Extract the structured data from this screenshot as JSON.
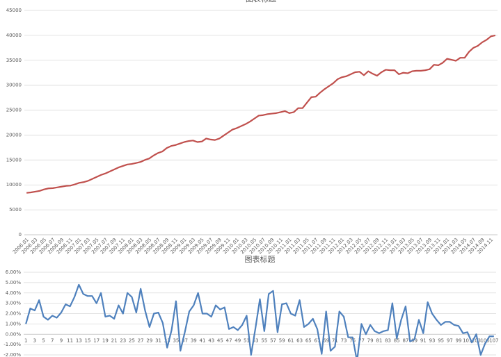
{
  "chart_data": [
    {
      "type": "line",
      "title": "图表标题",
      "categories": [
        "2006.01",
        null,
        "2006.03",
        null,
        "2006.05",
        null,
        "2006.07",
        null,
        "2006.09",
        null,
        "2006.11",
        null,
        "2007.01",
        null,
        "2007.03",
        null,
        "2007.05",
        null,
        "2007.07",
        null,
        "2007.09",
        null,
        "2007.11",
        null,
        "2008.01",
        null,
        "2008.03",
        null,
        "2008.05",
        null,
        "2008.07",
        null,
        "2008.09",
        null,
        "2008.11",
        null,
        "2009.01",
        null,
        "2009.03",
        null,
        "2009.05",
        null,
        "2009.07",
        null,
        "2009.09",
        null,
        "2009.11",
        null,
        "2010.01",
        null,
        "2010.03",
        null,
        "2010.05",
        null,
        "2010.07",
        null,
        "2010.09",
        null,
        "2010.11",
        null,
        "2011.01",
        null,
        "2011.03",
        null,
        "2011.05",
        null,
        "2011.07",
        null,
        "2011.09",
        null,
        "2011.11",
        null,
        "2012.01",
        null,
        "2012.03",
        null,
        "2012.05",
        null,
        "2012.07",
        null,
        "2012.09",
        null,
        "2012.11",
        null,
        "2013.01",
        null,
        "2013.03",
        null,
        "2013.05",
        null,
        "2013.07",
        null,
        "2013.09",
        null,
        "2013.11",
        null,
        "2014.01",
        null,
        "2014.03",
        null,
        "2014.05",
        null,
        "2014.07",
        null,
        "2014.09",
        null,
        "2014.11",
        null
      ],
      "series": [
        {
          "color": "#c0504d",
          "values": [
            8400,
            8500,
            8650,
            8800,
            9100,
            9300,
            9350,
            9500,
            9650,
            9800,
            9850,
            10100,
            10400,
            10550,
            10800,
            11200,
            11600,
            12000,
            12300,
            12700,
            13100,
            13500,
            13800,
            14100,
            14200,
            14400,
            14600,
            15000,
            15300,
            15900,
            16400,
            16700,
            17400,
            17800,
            18000,
            18300,
            18600,
            18800,
            18900,
            18600,
            18700,
            19300,
            19100,
            19000,
            19300,
            19900,
            20500,
            21100,
            21400,
            21800,
            22200,
            22700,
            23300,
            23900,
            24000,
            24200,
            24300,
            24400,
            24600,
            24800,
            24400,
            24600,
            25400,
            25400,
            26500,
            27600,
            27700,
            28500,
            29200,
            29800,
            30400,
            31200,
            31600,
            31800,
            32200,
            32600,
            32700,
            32000,
            32800,
            32300,
            31900,
            32600,
            33100,
            33000,
            33000,
            32200,
            32500,
            32400,
            32800,
            32900,
            32900,
            33000,
            33200,
            34100,
            34000,
            34500,
            35300,
            35100,
            34900,
            35500,
            35500,
            36700,
            37500,
            37900,
            38600,
            39100,
            39800,
            40000
          ]
        }
      ],
      "ylim": [
        0,
        45000
      ],
      "yticks": [
        0,
        5000,
        10000,
        15000,
        20000,
        25000,
        30000,
        35000,
        40000,
        45000
      ],
      "grid": true
    },
    {
      "type": "line",
      "title": "图表标题",
      "categories": [
        "1",
        null,
        "3",
        null,
        "5",
        null,
        "7",
        null,
        "9",
        null,
        "11",
        null,
        "13",
        null,
        "15",
        null,
        "17",
        null,
        "19",
        null,
        "21",
        null,
        "23",
        null,
        "25",
        null,
        "27",
        null,
        "29",
        null,
        "31",
        null,
        "33",
        null,
        "35",
        null,
        "37",
        null,
        "39",
        null,
        "41",
        null,
        "43",
        null,
        "45",
        null,
        "47",
        null,
        "49",
        null,
        "51",
        null,
        "53",
        null,
        "55",
        null,
        "57",
        null,
        "59",
        null,
        "61",
        null,
        "63",
        null,
        "65",
        null,
        "67",
        null,
        "69",
        null,
        "71",
        null,
        "73",
        null,
        "75",
        null,
        "77",
        null,
        "79",
        null,
        "81",
        null,
        "83",
        null,
        "85",
        null,
        "87",
        null,
        "89",
        null,
        "91",
        null,
        "93",
        null,
        "95",
        null,
        "97",
        null,
        "99",
        null,
        "101",
        null,
        "103",
        null,
        "105",
        null,
        "107"
      ],
      "series": [
        {
          "color": "#4f81bd",
          "values": [
            1.0,
            2.5,
            2.3,
            3.3,
            1.7,
            1.4,
            1.8,
            1.6,
            2.1,
            2.9,
            2.7,
            3.6,
            4.8,
            3.9,
            3.7,
            3.7,
            3.0,
            4.0,
            1.7,
            1.8,
            1.5,
            2.8,
            2.0,
            4.0,
            3.6,
            2.1,
            4.4,
            2.3,
            0.7,
            2.0,
            2.1,
            1.1,
            -1.3,
            0.4,
            3.2,
            -1.6,
            0.2,
            2.2,
            2.8,
            4.0,
            2.0,
            2.0,
            1.7,
            2.8,
            2.4,
            2.6,
            0.5,
            0.7,
            0.4,
            0.9,
            1.8,
            -2.0,
            0.6,
            3.4,
            0.3,
            3.9,
            4.2,
            0.2,
            2.9,
            3.0,
            2.0,
            1.8,
            3.3,
            0.7,
            1.0,
            1.5,
            0.5,
            -1.9,
            2.2,
            -1.6,
            -1.2,
            2.2,
            1.7,
            -0.3,
            -0.3,
            -2.6,
            1.0,
            0.0,
            0.9,
            0.3,
            0.1,
            0.3,
            0.4,
            3.0,
            -0.4,
            1.4,
            2.7,
            -0.7,
            -0.5,
            1.4,
            0.1,
            3.1,
            2.0,
            1.4,
            0.9,
            1.2,
            1.2,
            0.9,
            0.8,
            0.1,
            0.2,
            -0.8,
            0.0,
            -2.0,
            -0.9,
            -0.2,
            -0.2
          ]
        }
      ],
      "ylim": [
        -2,
        6
      ],
      "yticks": [
        {
          "value": -2,
          "label": "-2.00%"
        },
        {
          "value": -1,
          "label": "-1.00%"
        },
        {
          "value": 0,
          "label": "0.00%"
        },
        {
          "value": 1,
          "label": "1.00%"
        },
        {
          "value": 2,
          "label": "2.00%"
        },
        {
          "value": 3,
          "label": "3.00%"
        },
        {
          "value": 4,
          "label": "4.00%"
        },
        {
          "value": 5,
          "label": "5.00%"
        },
        {
          "value": 6,
          "label": "6.00%"
        }
      ],
      "grid": true
    }
  ]
}
